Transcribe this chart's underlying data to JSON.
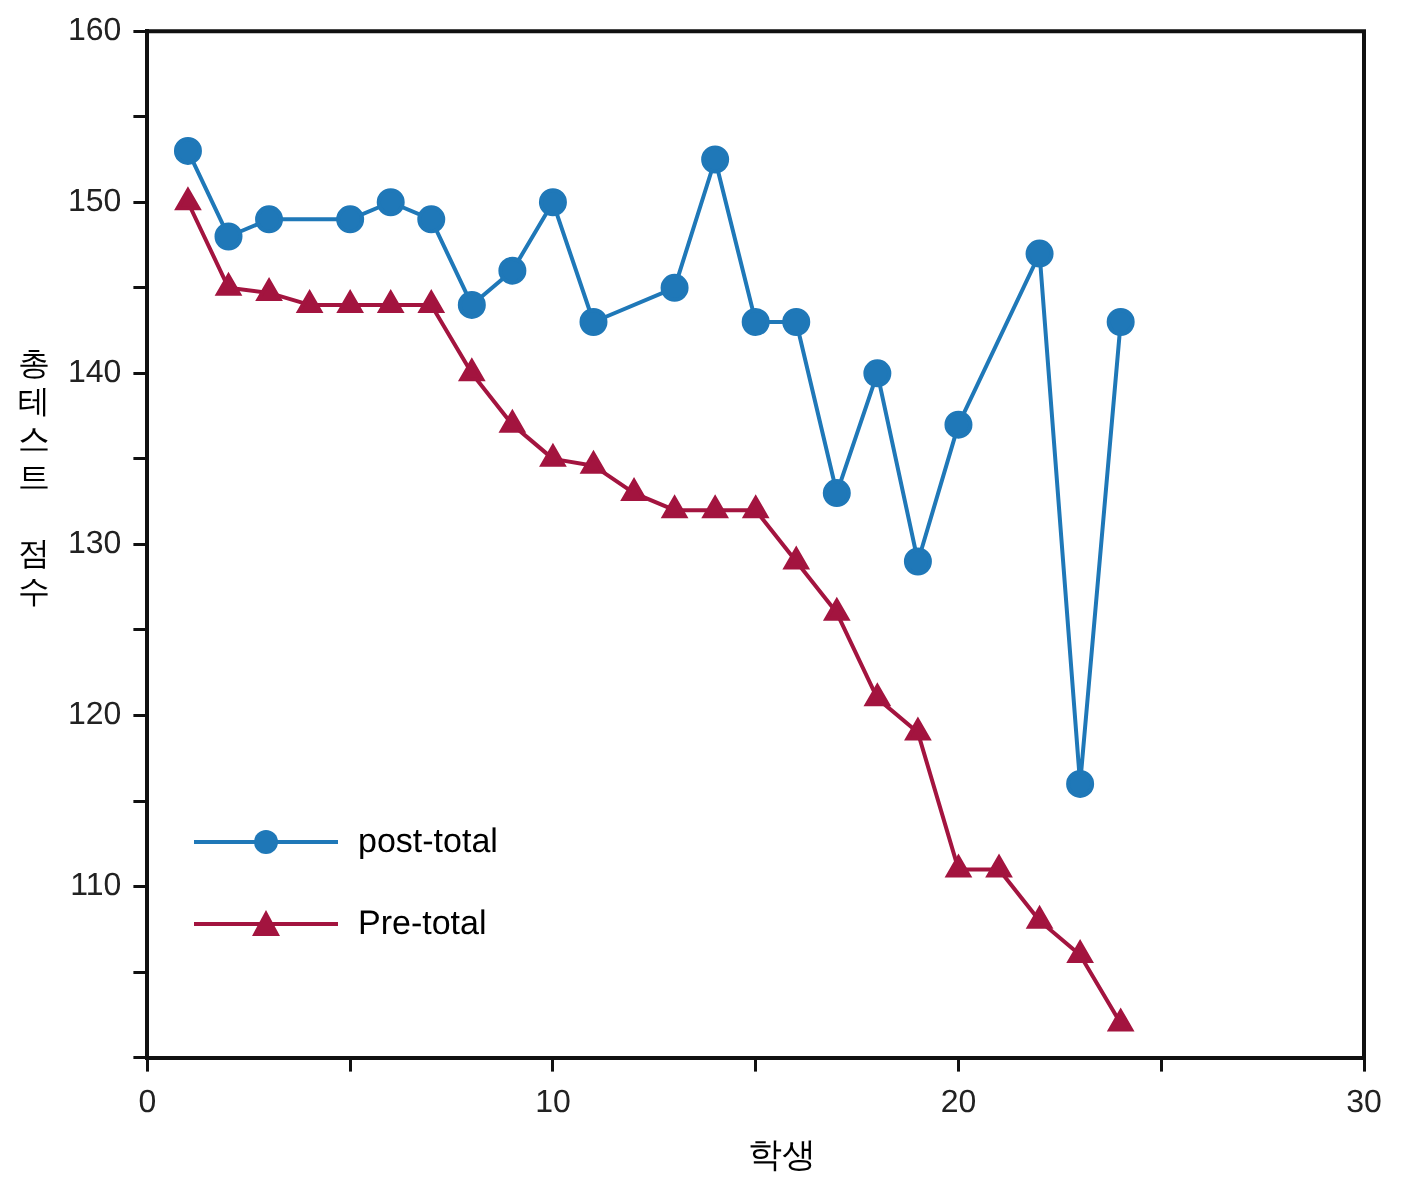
{
  "chart_data": {
    "type": "line",
    "xlabel": "학생",
    "ylabel": "총테스트 점수",
    "xlim": [
      0,
      30
    ],
    "xticks": [
      0,
      {
        "value": 5,
        "label": null
      },
      10,
      {
        "value": 15,
        "label": null
      },
      20,
      {
        "value": 25,
        "label": null
      },
      30
    ],
    "ylim": [
      100,
      160
    ],
    "yticks": [
      {
        "value": 100,
        "label": null
      },
      {
        "value": 105,
        "label": null
      },
      110,
      {
        "value": 115,
        "label": null
      },
      120,
      {
        "value": 125,
        "label": null
      },
      130,
      {
        "value": 135,
        "label": null
      },
      140,
      {
        "value": 145,
        "label": null
      },
      150,
      {
        "value": 155,
        "label": null
      },
      160
    ],
    "grid": false,
    "legend": "bottom left",
    "line_style": "solid",
    "series": [
      {
        "name": "post-total",
        "color": "#1f78b8",
        "marker": "circle",
        "x": [
          1,
          2,
          3,
          5,
          6,
          7,
          8,
          9,
          10,
          11,
          13,
          14,
          15,
          16,
          17,
          18,
          19,
          20,
          22,
          23,
          24
        ],
        "values": [
          153,
          148,
          149,
          149,
          150,
          149,
          144,
          146,
          150,
          143,
          145,
          152.5,
          143,
          143,
          133,
          140,
          129,
          137,
          147,
          116,
          143
        ]
      },
      {
        "name": "Pre-total",
        "color": "#a3143f",
        "marker": "triangle",
        "x": [
          1,
          2,
          3,
          4,
          5,
          6,
          7,
          8,
          9,
          10,
          11,
          12,
          13,
          14,
          15,
          16,
          17,
          18,
          19,
          20,
          21,
          22,
          23,
          24
        ],
        "values": [
          150,
          145,
          144.7,
          144,
          144,
          144,
          144,
          140,
          137,
          135,
          134.6,
          133,
          132,
          132,
          132,
          129,
          126,
          121,
          119,
          111,
          111,
          108,
          106,
          102
        ]
      }
    ]
  }
}
